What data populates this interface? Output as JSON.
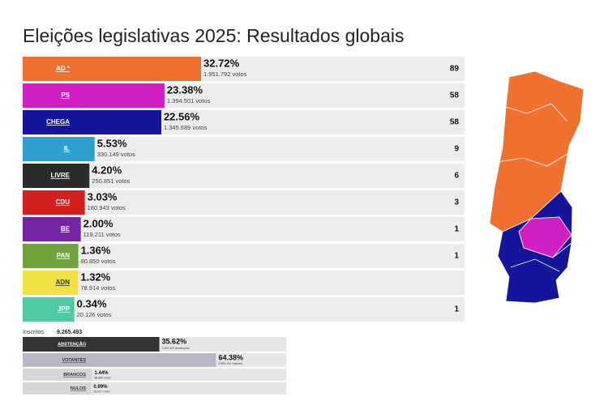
{
  "title": "Eleições legislativas 2025: Resultados globais",
  "chart_data": [
    {
      "type": "bar",
      "orientation": "horizontal",
      "categories": [
        "AD *",
        "PS",
        "CHEGA",
        "IL",
        "LIVRE",
        "CDU",
        "BE",
        "PAN",
        "ADN",
        "JPP"
      ],
      "colors": [
        "#f07030",
        "#d21fc4",
        "#15159c",
        "#2f9fcf",
        "#2b2b2b",
        "#d42020",
        "#7424a4",
        "#6fa33a",
        "#f0e040",
        "#4fc9a3"
      ],
      "values": [
        32.72,
        23.38,
        22.56,
        5.53,
        4.2,
        3.03,
        2.0,
        1.36,
        1.32,
        0.34
      ],
      "value_labels": [
        "32.72%",
        "23.38%",
        "22.56%",
        "5.53%",
        "4.20%",
        "3.03%",
        "2.00%",
        "1.36%",
        "1.32%",
        "0.34%"
      ],
      "vote_labels": [
        "1.951.792 votos",
        "1.394.501 votos",
        "1.345.689 votos",
        "330.149 votos",
        "250.851 votos",
        "180.943 votos",
        "119.211 votos",
        "80.850 votos",
        "78.914 votos",
        "20.126 votos"
      ],
      "seats": [
        89,
        58,
        58,
        9,
        6,
        3,
        1,
        1,
        null,
        1
      ],
      "xlim": [
        0,
        100
      ]
    },
    {
      "type": "bar",
      "orientation": "horizontal",
      "registered_label": "Inscritos",
      "registered": "9.265.493",
      "categories": [
        "ABSTENÇÃO",
        "VOTANTES",
        "BRANCOS",
        "NULOS"
      ],
      "colors": [
        "#333333",
        "#b9b9c6",
        "#d6d6d6",
        "#d6d6d6"
      ],
      "values": [
        35.62,
        64.38,
        1.44,
        0.99
      ],
      "value_labels": [
        "35.62%",
        "64.38%",
        "1.44%",
        "0.99%"
      ],
      "vote_labels": [
        "3.300.369 abstenções",
        "5.965.124 votantes",
        "85.860 votos",
        "59.057 votos"
      ],
      "xlim": [
        0,
        100
      ]
    }
  ]
}
